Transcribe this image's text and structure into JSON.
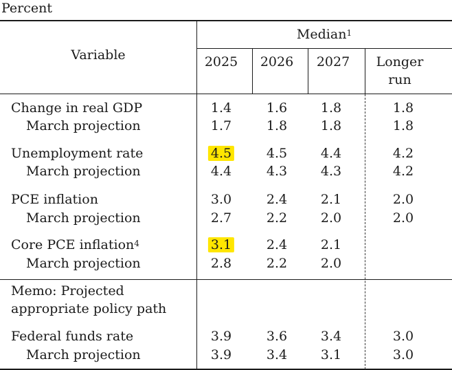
{
  "unit_label": "Percent",
  "header": {
    "variable_label": "Variable",
    "median_label": "Median",
    "median_note": "1",
    "columns": [
      "2025",
      "2026",
      "2027"
    ],
    "longer_run_line1": "Longer",
    "longer_run_line2": "run"
  },
  "rows": [
    {
      "label": "Change in real GDP",
      "note": "",
      "values": [
        "1.4",
        "1.6",
        "1.8",
        "1.8"
      ],
      "sub_label": "March projection",
      "sub_values": [
        "1.7",
        "1.8",
        "1.8",
        "1.8"
      ]
    },
    {
      "label": "Unemployment rate",
      "note": "",
      "values": [
        "4.5",
        "4.5",
        "4.4",
        "4.2"
      ],
      "sub_label": "March projection",
      "sub_values": [
        "4.4",
        "4.3",
        "4.3",
        "4.2"
      ]
    },
    {
      "label": "PCE inflation",
      "note": "",
      "values": [
        "3.0",
        "2.4",
        "2.1",
        "2.0"
      ],
      "sub_label": "March projection",
      "sub_values": [
        "2.7",
        "2.2",
        "2.0",
        "2.0"
      ]
    },
    {
      "label": "Core PCE inflation",
      "note": "4",
      "values": [
        "3.1",
        "2.4",
        "2.1",
        ""
      ],
      "sub_label": "March projection",
      "sub_values": [
        "2.8",
        "2.2",
        "2.0",
        ""
      ]
    }
  ],
  "memo": {
    "line1": "Memo: Projected",
    "line2": "appropriate policy path"
  },
  "fed_funds": {
    "label": "Federal funds rate",
    "values": [
      "3.9",
      "3.6",
      "3.4",
      "3.0"
    ],
    "sub_label": "March projection",
    "sub_values": [
      "3.9",
      "3.4",
      "3.1",
      "3.0"
    ]
  },
  "highlight_color": "#ffe600"
}
